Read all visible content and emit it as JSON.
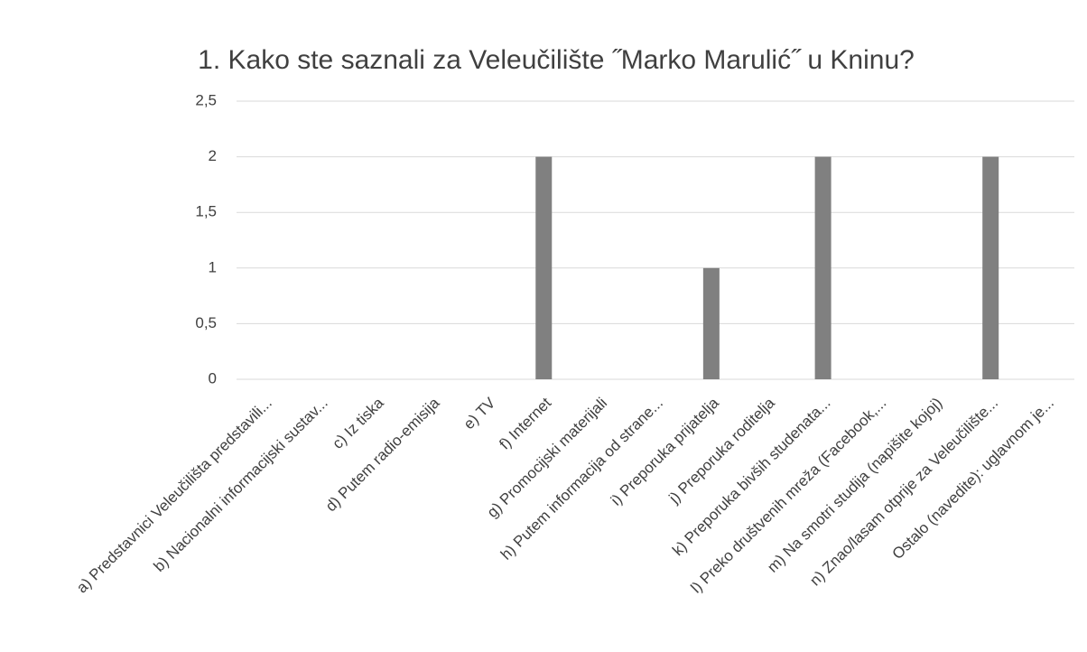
{
  "chart_data": {
    "type": "bar",
    "title": "1. Kako ste saznali za Veleučilište  ˝Marko Marulić˝ u Kninu?",
    "categories": [
      "a) Predstavnici Veleučilišta predstavili...",
      "b) Nacionalni informacijski sustav...",
      "c) Iz tiska",
      "d) Putem radio-emisija",
      "e) TV",
      "f) Internet",
      "g) Promocijski materijali",
      "h) Putem informacija od strane...",
      "i) Preporuka prijatelja",
      "j) Preporuka roditelja",
      "k) Preporuka bivših studenata...",
      "l) Preko društvenih mreža (Facebook,...",
      "m) Na smotri studija (napišite kojoj)",
      "n) Znao/lasam otprije za Veleučilište...",
      "Ostalo (navedite): uglavnom je..."
    ],
    "values": [
      0,
      0,
      0,
      0,
      0,
      2,
      0,
      0,
      1,
      0,
      2,
      0,
      0,
      2,
      0
    ],
    "color": "#808080",
    "ylim": [
      0,
      2.5
    ],
    "yticks": [
      0,
      {
        "value": 0.5,
        "label": "0,5"
      },
      1,
      {
        "value": 1.5,
        "label": "1,5"
      },
      2,
      {
        "value": 2.5,
        "label": "2,5"
      }
    ],
    "grid": true
  }
}
